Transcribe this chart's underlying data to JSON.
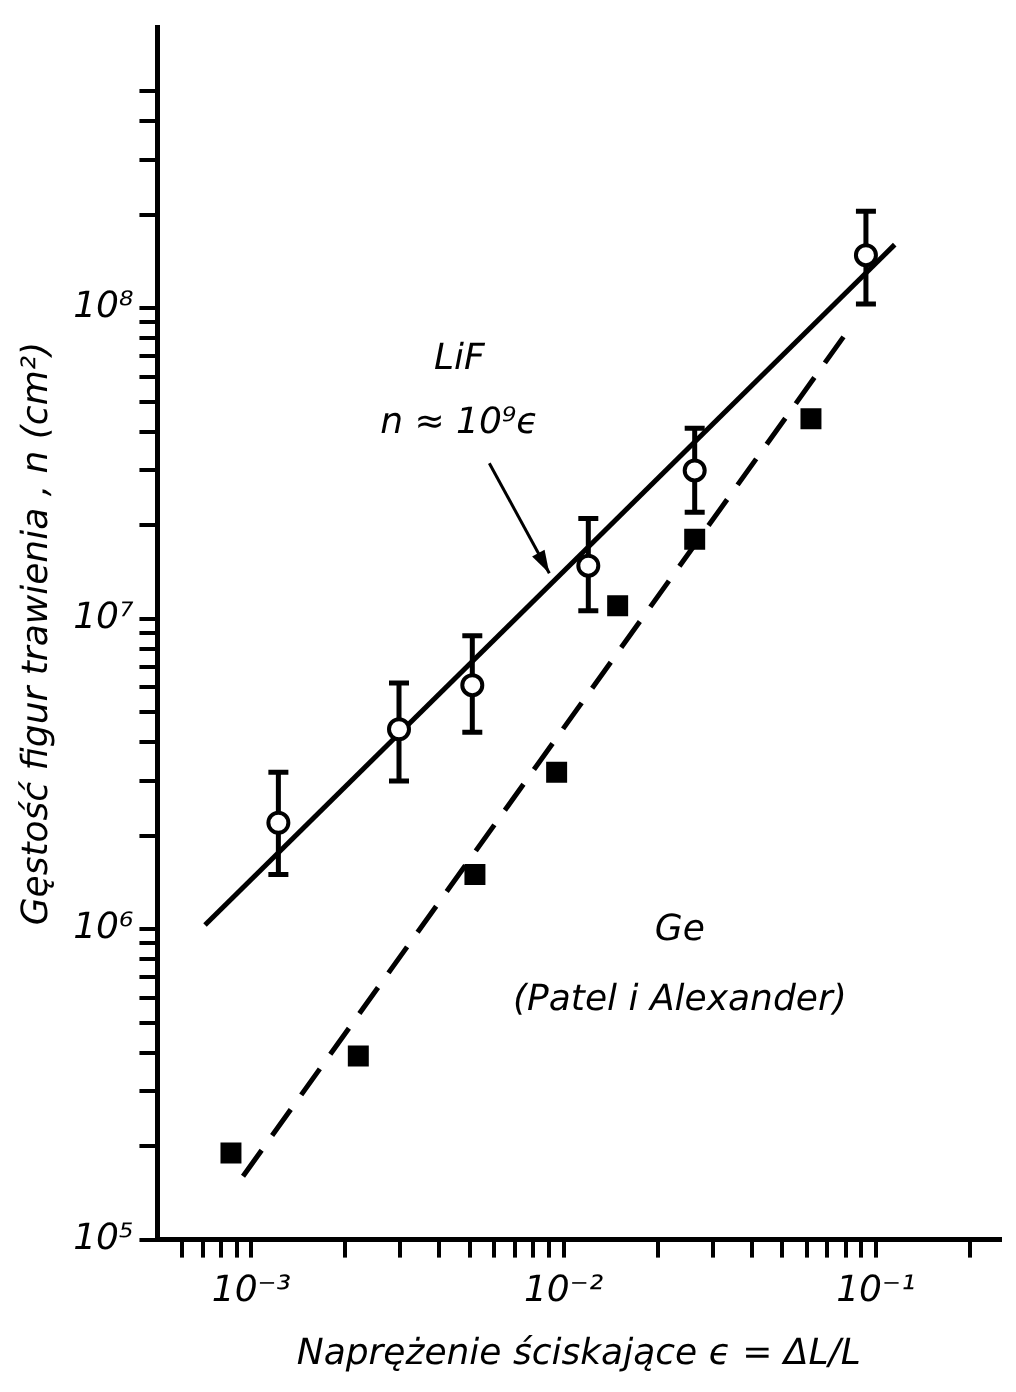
{
  "chart_data": {
    "type": "scatter",
    "xlabel": "Naprężenie ściskające ϵ = ΔL/L",
    "ylabel": "Gęstość figur trawienia , n (cm²)",
    "log": "xy",
    "grid": false,
    "legend": false,
    "xlim": [
      0.0005,
      0.25
    ],
    "ylim": [
      100000,
      800000000
    ],
    "xticks": [
      {
        "value": 0.0006,
        "label": null
      },
      {
        "value": 0.0007,
        "label": null
      },
      {
        "value": 0.0008,
        "label": null
      },
      {
        "value": 0.0009,
        "label": null
      },
      {
        "value": 0.001,
        "label": "10⁻³"
      },
      {
        "value": 0.002,
        "label": null
      },
      {
        "value": 0.003,
        "label": null
      },
      {
        "value": 0.004,
        "label": null
      },
      {
        "value": 0.005,
        "label": null
      },
      {
        "value": 0.006,
        "label": null
      },
      {
        "value": 0.007,
        "label": null
      },
      {
        "value": 0.008,
        "label": null
      },
      {
        "value": 0.009,
        "label": null
      },
      {
        "value": 0.01,
        "label": "10⁻²"
      },
      {
        "value": 0.02,
        "label": null
      },
      {
        "value": 0.03,
        "label": null
      },
      {
        "value": 0.04,
        "label": null
      },
      {
        "value": 0.05,
        "label": null
      },
      {
        "value": 0.06,
        "label": null
      },
      {
        "value": 0.07,
        "label": null
      },
      {
        "value": 0.08,
        "label": null
      },
      {
        "value": 0.09,
        "label": null
      },
      {
        "value": 0.1,
        "label": "10⁻¹"
      },
      {
        "value": 0.2,
        "label": null
      }
    ],
    "yticks": [
      {
        "value": 100000,
        "label": "10⁵"
      },
      {
        "value": 200000,
        "label": null
      },
      {
        "value": 300000,
        "label": null
      },
      {
        "value": 400000,
        "label": null
      },
      {
        "value": 500000,
        "label": null
      },
      {
        "value": 600000,
        "label": null
      },
      {
        "value": 700000,
        "label": null
      },
      {
        "value": 800000,
        "label": null
      },
      {
        "value": 900000,
        "label": null
      },
      {
        "value": 1000000,
        "label": "10⁶"
      },
      {
        "value": 2000000,
        "label": null
      },
      {
        "value": 3000000,
        "label": null
      },
      {
        "value": 4000000,
        "label": null
      },
      {
        "value": 5000000,
        "label": null
      },
      {
        "value": 6000000,
        "label": null
      },
      {
        "value": 7000000,
        "label": null
      },
      {
        "value": 8000000,
        "label": null
      },
      {
        "value": 9000000,
        "label": null
      },
      {
        "value": 10000000,
        "label": "10⁷"
      },
      {
        "value": 20000000,
        "label": null
      },
      {
        "value": 30000000,
        "label": null
      },
      {
        "value": 40000000,
        "label": null
      },
      {
        "value": 50000000,
        "label": null
      },
      {
        "value": 60000000,
        "label": null
      },
      {
        "value": 70000000,
        "label": null
      },
      {
        "value": 80000000,
        "label": null
      },
      {
        "value": 90000000,
        "label": null
      },
      {
        "value": 100000000,
        "label": "10⁸"
      },
      {
        "value": 200000000,
        "label": null
      },
      {
        "value": 300000000,
        "label": null
      },
      {
        "value": 400000000,
        "label": null
      },
      {
        "value": 500000000,
        "label": null
      }
    ],
    "series": [
      {
        "marker": "circle",
        "color": "#000000",
        "x": [
          0.00122,
          0.00297,
          0.0051,
          0.012,
          0.0263,
          0.093
        ],
        "values": [
          2200000,
          4400000,
          6100000,
          14800000,
          30000000,
          148000000
        ],
        "errors": [
          [
            1500000,
            3200000
          ],
          [
            3000000,
            6200000
          ],
          [
            4300000,
            8800000
          ],
          [
            10600000,
            21000000
          ],
          [
            22000000,
            41000000
          ],
          [
            103000000,
            205000000
          ]
        ]
      },
      {
        "marker": "square",
        "color": "#000000",
        "x": [
          0.00086,
          0.0022,
          0.0052,
          0.0095,
          0.0149,
          0.0263,
          0.062
        ],
        "values": [
          190000,
          390000,
          1500000,
          3200000,
          11000000,
          18000000,
          44000000
        ]
      },
      {
        "type": "line",
        "line_style": "solid",
        "color": "#000000",
        "x": [
          0.00071,
          0.115
        ],
        "values": [
          1030000,
          160000000
        ]
      },
      {
        "type": "line",
        "line_style": "dashed",
        "color": "#000000",
        "x": [
          0.00094,
          0.079
        ],
        "values": [
          160000,
          81000000
        ]
      }
    ],
    "annotations": [
      {
        "text": "LiF\nn ≈ 10⁹ϵ",
        "x": 0.009,
        "y": 14000000
      },
      "Ge\n(Patel i Alexander)"
    ]
  }
}
